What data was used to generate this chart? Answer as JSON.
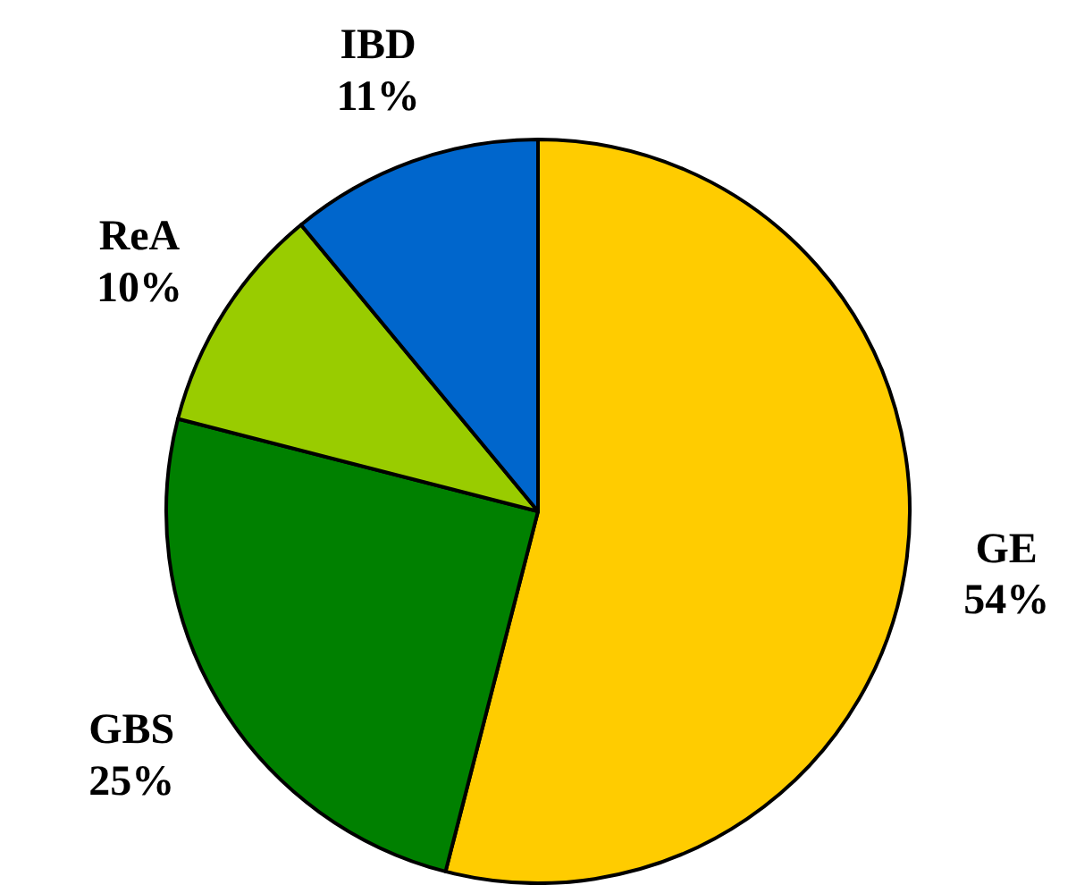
{
  "chart_data": {
    "type": "pie",
    "categories": [
      "GE",
      "GBS",
      "ReA",
      "IBD"
    ],
    "values": [
      54,
      25,
      10,
      11
    ],
    "colors": [
      "#ffcc00",
      "#008000",
      "#99cc00",
      "#0066cc"
    ],
    "value_labels": [
      "54%",
      "25%",
      "10%",
      "11%"
    ]
  }
}
